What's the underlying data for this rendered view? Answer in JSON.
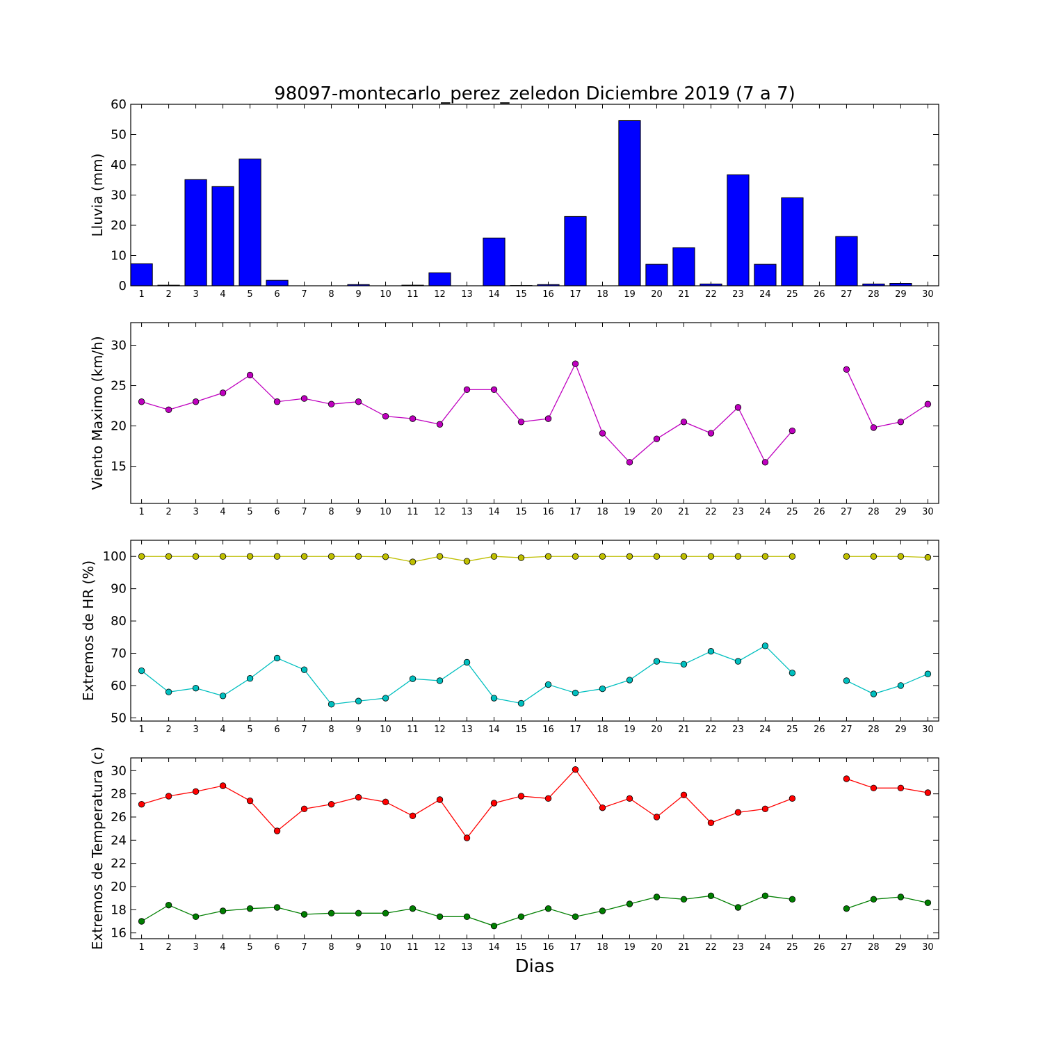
{
  "figure": {
    "title": "98097-montecarlo_perez_zeledon Diciembre 2019  (7 a 7)",
    "xlabel": "Dias"
  },
  "chart_data": [
    {
      "type": "bar",
      "ylabel": "Lluvia (mm)",
      "ylim": [
        0,
        60
      ],
      "yticks": [
        0,
        10,
        20,
        30,
        40,
        50,
        60
      ],
      "xticks": [
        1,
        2,
        3,
        4,
        5,
        6,
        7,
        8,
        9,
        10,
        11,
        12,
        13,
        14,
        15,
        16,
        17,
        18,
        19,
        20,
        21,
        22,
        23,
        24,
        25,
        26,
        27,
        28,
        29,
        30
      ],
      "color": "#0000ff",
      "series": [
        {
          "values": [
            7.3,
            0.2,
            35.1,
            32.8,
            41.9,
            1.8,
            0,
            0,
            0.4,
            0,
            0.2,
            4.3,
            0,
            15.8,
            0.1,
            0.4,
            22.9,
            0,
            54.6,
            7.1,
            12.6,
            0.6,
            36.7,
            7.1,
            29.1,
            null,
            16.3,
            0.6,
            0.8,
            0
          ]
        }
      ]
    },
    {
      "type": "line",
      "ylabel": "Viento Maximo (km/h)",
      "ylim": [
        10.4,
        32.8
      ],
      "yticks": [
        15,
        20,
        25,
        30
      ],
      "xticks": [
        1,
        2,
        3,
        4,
        5,
        6,
        7,
        8,
        9,
        10,
        11,
        12,
        13,
        14,
        15,
        16,
        17,
        18,
        19,
        20,
        21,
        22,
        23,
        24,
        25,
        26,
        27,
        28,
        29,
        30
      ],
      "series": [
        {
          "color": "#bf00bf",
          "values": [
            23.0,
            22.0,
            23.0,
            24.1,
            26.3,
            23.0,
            23.4,
            22.7,
            23.0,
            21.2,
            20.9,
            20.2,
            24.5,
            24.5,
            20.5,
            20.9,
            27.7,
            19.1,
            15.5,
            18.4,
            20.5,
            19.1,
            22.3,
            15.5,
            19.4,
            null,
            27.0,
            19.8,
            20.5,
            22.7
          ]
        }
      ]
    },
    {
      "type": "line",
      "ylabel": "Extremos de HR (%)",
      "ylim": [
        49,
        105
      ],
      "yticks": [
        50,
        60,
        70,
        80,
        90,
        100
      ],
      "xticks": [
        1,
        2,
        3,
        4,
        5,
        6,
        7,
        8,
        9,
        10,
        11,
        12,
        13,
        14,
        15,
        16,
        17,
        18,
        19,
        20,
        21,
        22,
        23,
        24,
        25,
        26,
        27,
        28,
        29,
        30
      ],
      "series": [
        {
          "color": "#bfbf00",
          "values": [
            100,
            100,
            100,
            100,
            100,
            100,
            100,
            100,
            100,
            99.9,
            98.3,
            100,
            98.5,
            100,
            99.6,
            100,
            100,
            100,
            100,
            100,
            100,
            100,
            100,
            100,
            100,
            null,
            100,
            100,
            100,
            99.7
          ]
        },
        {
          "color": "#00bfbf",
          "values": [
            64.6,
            58.0,
            59.2,
            56.8,
            62.2,
            68.5,
            64.9,
            54.2,
            55.2,
            56.1,
            62.1,
            61.5,
            67.2,
            56.1,
            54.5,
            60.3,
            57.7,
            59.0,
            61.7,
            67.5,
            66.6,
            70.6,
            67.5,
            72.3,
            63.9,
            null,
            61.5,
            57.4,
            60.0,
            63.6
          ]
        }
      ]
    },
    {
      "type": "line",
      "ylabel": "Extremos de Temperatura (c)",
      "ylim": [
        15.5,
        31.1
      ],
      "yticks": [
        16,
        18,
        20,
        22,
        24,
        26,
        28,
        30
      ],
      "xticks": [
        1,
        2,
        3,
        4,
        5,
        6,
        7,
        8,
        9,
        10,
        11,
        12,
        13,
        14,
        15,
        16,
        17,
        18,
        19,
        20,
        21,
        22,
        23,
        24,
        25,
        26,
        27,
        28,
        29,
        30
      ],
      "series": [
        {
          "color": "#ff0000",
          "values": [
            27.1,
            27.8,
            28.2,
            28.7,
            27.4,
            24.8,
            26.7,
            27.1,
            27.7,
            27.3,
            26.1,
            27.5,
            24.2,
            27.2,
            27.8,
            27.6,
            30.1,
            26.8,
            27.6,
            26.0,
            27.9,
            25.5,
            26.4,
            26.7,
            27.6,
            null,
            29.3,
            28.5,
            28.5,
            28.1
          ]
        },
        {
          "color": "#007f00",
          "values": [
            17.0,
            18.4,
            17.4,
            17.9,
            18.1,
            18.2,
            17.6,
            17.7,
            17.7,
            17.7,
            18.1,
            17.4,
            17.4,
            16.6,
            17.4,
            18.1,
            17.4,
            17.9,
            18.5,
            19.1,
            18.9,
            19.2,
            18.2,
            19.2,
            18.9,
            null,
            18.1,
            18.9,
            19.1,
            18.6
          ]
        }
      ]
    }
  ]
}
